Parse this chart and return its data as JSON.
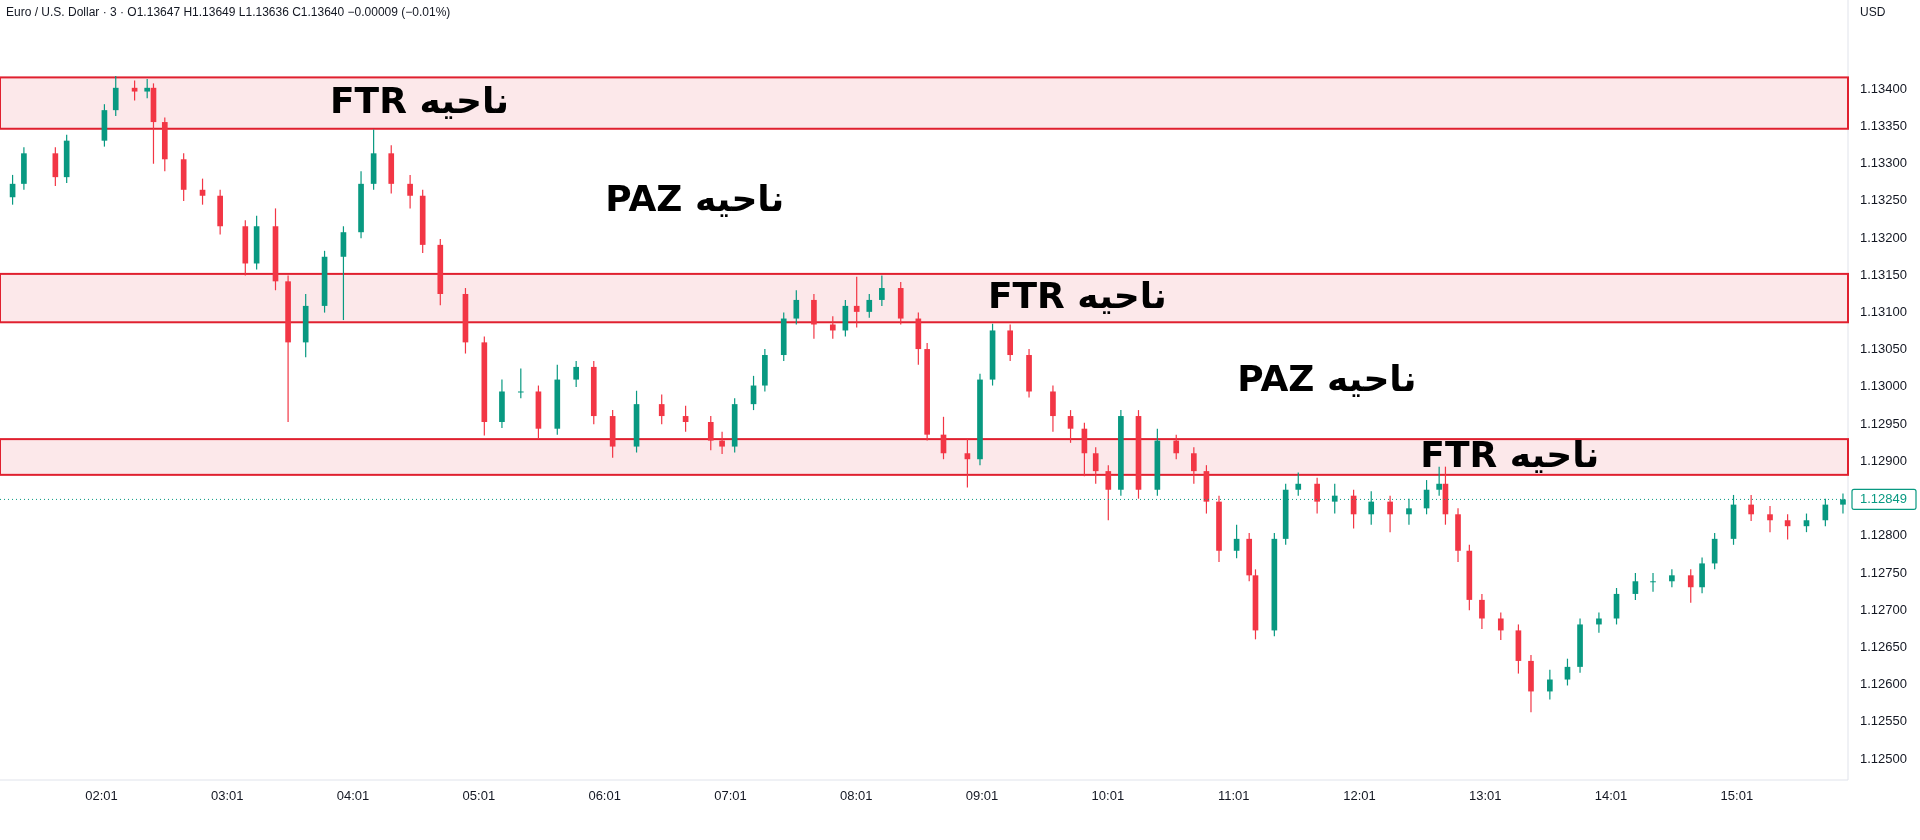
{
  "chart_data": {
    "type": "candlestick",
    "title": "Euro / U.S. Dollar · 3 · O1.13647 H1.13649 L1.13636 C1.13640 −0.00009 (−0.01%)",
    "ylabel": "USD",
    "x": [
      1.31,
      1.4,
      1.65,
      1.74,
      2.04,
      2.13,
      2.28,
      2.38,
      2.43,
      2.52,
      2.67,
      2.82,
      2.96,
      3.16,
      3.25,
      3.4,
      3.5,
      3.64,
      3.79,
      3.94,
      4.08,
      4.18,
      4.32,
      4.47,
      4.57,
      4.71,
      4.91,
      5.06,
      5.2,
      5.35,
      5.49,
      5.64,
      5.79,
      5.93,
      6.08,
      6.27,
      6.47,
      6.66,
      6.86,
      6.95,
      7.05,
      7.2,
      7.29,
      7.44,
      7.54,
      7.68,
      7.83,
      7.93,
      8.02,
      8.12,
      8.22,
      8.37,
      8.51,
      8.58,
      8.71,
      8.9,
      9.0,
      9.1,
      9.24,
      9.39,
      9.58,
      9.72,
      9.83,
      9.92,
      10.02,
      10.12,
      10.26,
      10.41,
      10.56,
      10.7,
      10.8,
      10.9,
      11.04,
      11.14,
      11.19,
      11.34,
      11.43,
      11.53,
      11.68,
      11.82,
      11.97,
      12.11,
      12.26,
      12.41,
      12.55,
      12.65,
      12.7,
      12.8,
      12.89,
      12.99,
      13.14,
      13.28,
      13.38,
      13.53,
      13.67,
      13.77,
      13.92,
      14.06,
      14.21,
      14.35,
      14.5,
      14.65,
      14.74,
      14.84,
      14.99,
      15.13,
      15.28,
      15.42,
      15.57,
      15.72,
      15.86
    ],
    "ohlc": [
      [
        1.13255,
        1.13285,
        1.13245,
        1.13273
      ],
      [
        1.13273,
        1.13322,
        1.13265,
        1.13314
      ],
      [
        1.13314,
        1.13322,
        1.1327,
        1.13282
      ],
      [
        1.13282,
        1.13339,
        1.13274,
        1.13331
      ],
      [
        1.13331,
        1.1338,
        1.13323,
        1.13372
      ],
      [
        1.13372,
        1.13418,
        1.13364,
        1.13402
      ],
      [
        1.13402,
        1.13412,
        1.13385,
        1.13397
      ],
      [
        1.13397,
        1.13414,
        1.13388,
        1.13402
      ],
      [
        1.13402,
        1.13408,
        1.133,
        1.13356
      ],
      [
        1.13356,
        1.13362,
        1.1329,
        1.13306
      ],
      [
        1.13306,
        1.13314,
        1.1325,
        1.13265
      ],
      [
        1.13265,
        1.1328,
        1.13245,
        1.13257
      ],
      [
        1.13257,
        1.13265,
        1.13205,
        1.13216
      ],
      [
        1.13216,
        1.13224,
        1.1315,
        1.13166
      ],
      [
        1.13166,
        1.1323,
        1.13158,
        1.13216
      ],
      [
        1.13216,
        1.1324,
        1.1313,
        1.13142
      ],
      [
        1.13142,
        1.1315,
        1.12953,
        1.1306
      ],
      [
        1.1306,
        1.13125,
        1.1304,
        1.13109
      ],
      [
        1.13109,
        1.13183,
        1.131,
        1.13175
      ],
      [
        1.13175,
        1.13216,
        1.1309,
        1.13208
      ],
      [
        1.13208,
        1.1329,
        1.132,
        1.13273
      ],
      [
        1.13273,
        1.13346,
        1.13265,
        1.13314
      ],
      [
        1.13314,
        1.13325,
        1.1326,
        1.13273
      ],
      [
        1.13273,
        1.13285,
        1.1324,
        1.13257
      ],
      [
        1.13257,
        1.13265,
        1.1318,
        1.13191
      ],
      [
        1.13191,
        1.13199,
        1.1311,
        1.13125
      ],
      [
        1.13125,
        1.13133,
        1.13045,
        1.1306
      ],
      [
        1.1306,
        1.13068,
        1.12935,
        1.12953
      ],
      [
        1.12953,
        1.1301,
        1.12945,
        1.12994
      ],
      [
        1.12994,
        1.13025,
        1.12985,
        1.12994
      ],
      [
        1.12994,
        1.13002,
        1.1293,
        1.12944
      ],
      [
        1.12944,
        1.1303,
        1.12936,
        1.1301
      ],
      [
        1.1301,
        1.13035,
        1.13,
        1.13027
      ],
      [
        1.13027,
        1.13035,
        1.1295,
        1.12961
      ],
      [
        1.12961,
        1.12969,
        1.12905,
        1.1292
      ],
      [
        1.1292,
        1.12995,
        1.12912,
        1.12977
      ],
      [
        1.12977,
        1.1299,
        1.1295,
        1.12961
      ],
      [
        1.12961,
        1.12975,
        1.1294,
        1.12953
      ],
      [
        1.12953,
        1.12961,
        1.12915,
        1.12928
      ],
      [
        1.12928,
        1.1294,
        1.1291,
        1.1292
      ],
      [
        1.1292,
        1.12985,
        1.12912,
        1.12977
      ],
      [
        1.12977,
        1.13015,
        1.12969,
        1.13002
      ],
      [
        1.13002,
        1.13051,
        1.12994,
        1.13043
      ],
      [
        1.13043,
        1.131,
        1.13035,
        1.13092
      ],
      [
        1.13092,
        1.1313,
        1.13084,
        1.13117
      ],
      [
        1.13117,
        1.13125,
        1.13065,
        1.13084
      ],
      [
        1.13084,
        1.13095,
        1.13065,
        1.13076
      ],
      [
        1.13076,
        1.13117,
        1.13068,
        1.13109
      ],
      [
        1.13109,
        1.13148,
        1.1308,
        1.13101
      ],
      [
        1.13101,
        1.13125,
        1.13093,
        1.13117
      ],
      [
        1.13117,
        1.1315,
        1.13109,
        1.13133
      ],
      [
        1.13133,
        1.13141,
        1.13084,
        1.13092
      ],
      [
        1.13092,
        1.131,
        1.1303,
        1.13051
      ],
      [
        1.13051,
        1.13059,
        1.12928,
        1.12936
      ],
      [
        1.12936,
        1.1296,
        1.12903,
        1.12911
      ],
      [
        1.12911,
        1.1293,
        1.12865,
        1.12903
      ],
      [
        1.12903,
        1.13018,
        1.12895,
        1.1301
      ],
      [
        1.1301,
        1.13085,
        1.13002,
        1.13076
      ],
      [
        1.13076,
        1.13084,
        1.13035,
        1.13043
      ],
      [
        1.13043,
        1.13051,
        1.12986,
        1.12994
      ],
      [
        1.12994,
        1.13002,
        1.1294,
        1.12961
      ],
      [
        1.12961,
        1.12969,
        1.12925,
        1.12944
      ],
      [
        1.12944,
        1.12952,
        1.1288,
        1.12911
      ],
      [
        1.12911,
        1.12919,
        1.1287,
        1.12887
      ],
      [
        1.12887,
        1.12895,
        1.12821,
        1.12862
      ],
      [
        1.12862,
        1.12969,
        1.12854,
        1.12961
      ],
      [
        1.12961,
        1.12969,
        1.1285,
        1.12862
      ],
      [
        1.12862,
        1.12944,
        1.12854,
        1.12928
      ],
      [
        1.12928,
        1.12936,
        1.12903,
        1.12911
      ],
      [
        1.12911,
        1.12919,
        1.1287,
        1.12887
      ],
      [
        1.12887,
        1.12895,
        1.1283,
        1.12846
      ],
      [
        1.12846,
        1.12854,
        1.12765,
        1.1278
      ],
      [
        1.1278,
        1.12815,
        1.1277,
        1.12796
      ],
      [
        1.12796,
        1.12804,
        1.12739,
        1.12747
      ],
      [
        1.12747,
        1.12755,
        1.12661,
        1.12673
      ],
      [
        1.12673,
        1.12804,
        1.12665,
        1.12796
      ],
      [
        1.12796,
        1.1287,
        1.12788,
        1.12862
      ],
      [
        1.12862,
        1.12885,
        1.12854,
        1.1287
      ],
      [
        1.1287,
        1.12878,
        1.1283,
        1.12846
      ],
      [
        1.12846,
        1.1287,
        1.1283,
        1.12854
      ],
      [
        1.12854,
        1.12862,
        1.1281,
        1.12829
      ],
      [
        1.12829,
        1.1286,
        1.12815,
        1.12846
      ],
      [
        1.12846,
        1.12854,
        1.12805,
        1.12829
      ],
      [
        1.12829,
        1.1285,
        1.12815,
        1.12837
      ],
      [
        1.12837,
        1.12875,
        1.12829,
        1.12862
      ],
      [
        1.12862,
        1.12893,
        1.12854,
        1.1287
      ],
      [
        1.1287,
        1.12893,
        1.12815,
        1.12829
      ],
      [
        1.12829,
        1.12837,
        1.12765,
        1.1278
      ],
      [
        1.1278,
        1.12788,
        1.127,
        1.12714
      ],
      [
        1.12714,
        1.12722,
        1.12675,
        1.12689
      ],
      [
        1.12689,
        1.12697,
        1.1266,
        1.12673
      ],
      [
        1.12673,
        1.12681,
        1.12615,
        1.12632
      ],
      [
        1.12632,
        1.1264,
        1.12563,
        1.12591
      ],
      [
        1.12591,
        1.1262,
        1.1258,
        1.12607
      ],
      [
        1.12607,
        1.12635,
        1.12599,
        1.12624
      ],
      [
        1.12624,
        1.12689,
        1.12616,
        1.12681
      ],
      [
        1.12681,
        1.12697,
        1.1267,
        1.12689
      ],
      [
        1.12689,
        1.1273,
        1.12681,
        1.12722
      ],
      [
        1.12722,
        1.1275,
        1.12714,
        1.12739
      ],
      [
        1.12739,
        1.1275,
        1.12725,
        1.12739
      ],
      [
        1.12739,
        1.12755,
        1.12731,
        1.12747
      ],
      [
        1.12747,
        1.12755,
        1.1271,
        1.12731
      ],
      [
        1.12731,
        1.12771,
        1.12723,
        1.12763
      ],
      [
        1.12763,
        1.12804,
        1.12755,
        1.12796
      ],
      [
        1.12796,
        1.12855,
        1.12788,
        1.12842
      ],
      [
        1.12842,
        1.12855,
        1.1282,
        1.12829
      ],
      [
        1.12829,
        1.1284,
        1.12805,
        1.12821
      ],
      [
        1.12821,
        1.12829,
        1.12795,
        1.12813
      ],
      [
        1.12813,
        1.1283,
        1.12805,
        1.12821
      ],
      [
        1.12821,
        1.1285,
        1.12813,
        1.12842
      ],
      [
        1.12842,
        1.12857,
        1.1283,
        1.12849
      ]
    ],
    "colors": [
      "#089981",
      "#089981",
      "#f23645",
      "#089981",
      "#089981",
      "#089981",
      "#f23645",
      "#089981",
      "#f23645",
      "#f23645",
      "#f23645",
      "#f23645",
      "#f23645",
      "#f23645",
      "#089981",
      "#f23645",
      "#f23645",
      "#089981",
      "#089981",
      "#089981",
      "#089981",
      "#089981",
      "#f23645",
      "#f23645",
      "#f23645",
      "#f23645",
      "#f23645",
      "#f23645",
      "#089981",
      "#089981",
      "#f23645",
      "#089981",
      "#089981",
      "#f23645",
      "#f23645",
      "#089981",
      "#f23645",
      "#f23645",
      "#f23645",
      "#f23645",
      "#089981",
      "#089981",
      "#089981",
      "#089981",
      "#089981",
      "#f23645",
      "#f23645",
      "#089981",
      "#f23645",
      "#089981",
      "#089981",
      "#f23645",
      "#f23645",
      "#f23645",
      "#f23645",
      "#f23645",
      "#089981",
      "#089981",
      "#f23645",
      "#f23645",
      "#f23645",
      "#f23645",
      "#f23645",
      "#f23645",
      "#f23645",
      "#089981",
      "#f23645",
      "#089981",
      "#f23645",
      "#f23645",
      "#f23645",
      "#f23645",
      "#089981",
      "#f23645",
      "#f23645",
      "#089981",
      "#089981",
      "#089981",
      "#f23645",
      "#089981",
      "#f23645",
      "#089981",
      "#f23645",
      "#089981",
      "#089981",
      "#089981",
      "#f23645",
      "#f23645",
      "#f23645",
      "#f23645",
      "#f23645",
      "#f23645",
      "#f23645",
      "#089981",
      "#089981",
      "#089981",
      "#089981",
      "#089981",
      "#089981",
      "#089981",
      "#089981",
      "#f23645",
      "#089981",
      "#089981",
      "#089981",
      "#f23645",
      "#f23645",
      "#f23645",
      "#089981",
      "#089981",
      "#089981"
    ],
    "xlim": [
      1.21,
      15.9
    ],
    "ylim": [
      1.12472,
      1.1352
    ],
    "xticks": [
      {
        "value": 2.0167,
        "label": "02:01"
      },
      {
        "value": 3.0167,
        "label": "03:01"
      },
      {
        "value": 4.0167,
        "label": "04:01"
      },
      {
        "value": 5.0167,
        "label": "05:01"
      },
      {
        "value": 6.0167,
        "label": "06:01"
      },
      {
        "value": 7.0167,
        "label": "07:01"
      },
      {
        "value": 8.0167,
        "label": "08:01"
      },
      {
        "value": 9.0167,
        "label": "09:01"
      },
      {
        "value": 10.0167,
        "label": "10:01"
      },
      {
        "value": 11.0167,
        "label": "11:01"
      },
      {
        "value": 12.0167,
        "label": "12:01"
      },
      {
        "value": 13.0167,
        "label": "13:01"
      },
      {
        "value": 14.0167,
        "label": "14:01"
      },
      {
        "value": 15.0167,
        "label": "15:01"
      }
    ],
    "yticks": [
      {
        "value": 1.125,
        "label": "1.12500"
      },
      {
        "value": 1.1255,
        "label": "1.12550"
      },
      {
        "value": 1.126,
        "label": "1.12600"
      },
      {
        "value": 1.1265,
        "label": "1.12650"
      },
      {
        "value": 1.127,
        "label": "1.12700"
      },
      {
        "value": 1.1275,
        "label": "1.12750"
      },
      {
        "value": 1.128,
        "label": "1.12800"
      },
      {
        "value": 1.129,
        "label": "1.12900"
      },
      {
        "value": 1.1295,
        "label": "1.12950"
      },
      {
        "value": 1.13,
        "label": "1.13000"
      },
      {
        "value": 1.1305,
        "label": "1.13050"
      },
      {
        "value": 1.131,
        "label": "1.13100"
      },
      {
        "value": 1.1315,
        "label": "1.13150"
      },
      {
        "value": 1.132,
        "label": "1.13200"
      },
      {
        "value": 1.1325,
        "label": "1.13250"
      },
      {
        "value": 1.133,
        "label": "1.13300"
      },
      {
        "value": 1.1335,
        "label": "1.13350"
      },
      {
        "value": 1.134,
        "label": "1.13400"
      }
    ],
    "bands": [
      {
        "axis": "y",
        "from": 1.13347,
        "to": 1.13416,
        "label": "ناحیه FTR",
        "color": "#e0202f"
      },
      {
        "axis": "y",
        "from": 1.13087,
        "to": 1.13152,
        "label": "ناحیه FTR",
        "color": "#e0202f"
      },
      {
        "axis": "y",
        "from": 1.12882,
        "to": 1.1293,
        "label": "ناحیه FTR",
        "color": "#e0202f"
      }
    ],
    "ref_lines": [
      {
        "axis": "y",
        "value": 1.12849,
        "label": "1.12849",
        "color": "#089981",
        "line_style": "dotted"
      }
    ],
    "annotations": [
      "ناحیه PAZ",
      "ناحیه PAZ"
    ]
  }
}
